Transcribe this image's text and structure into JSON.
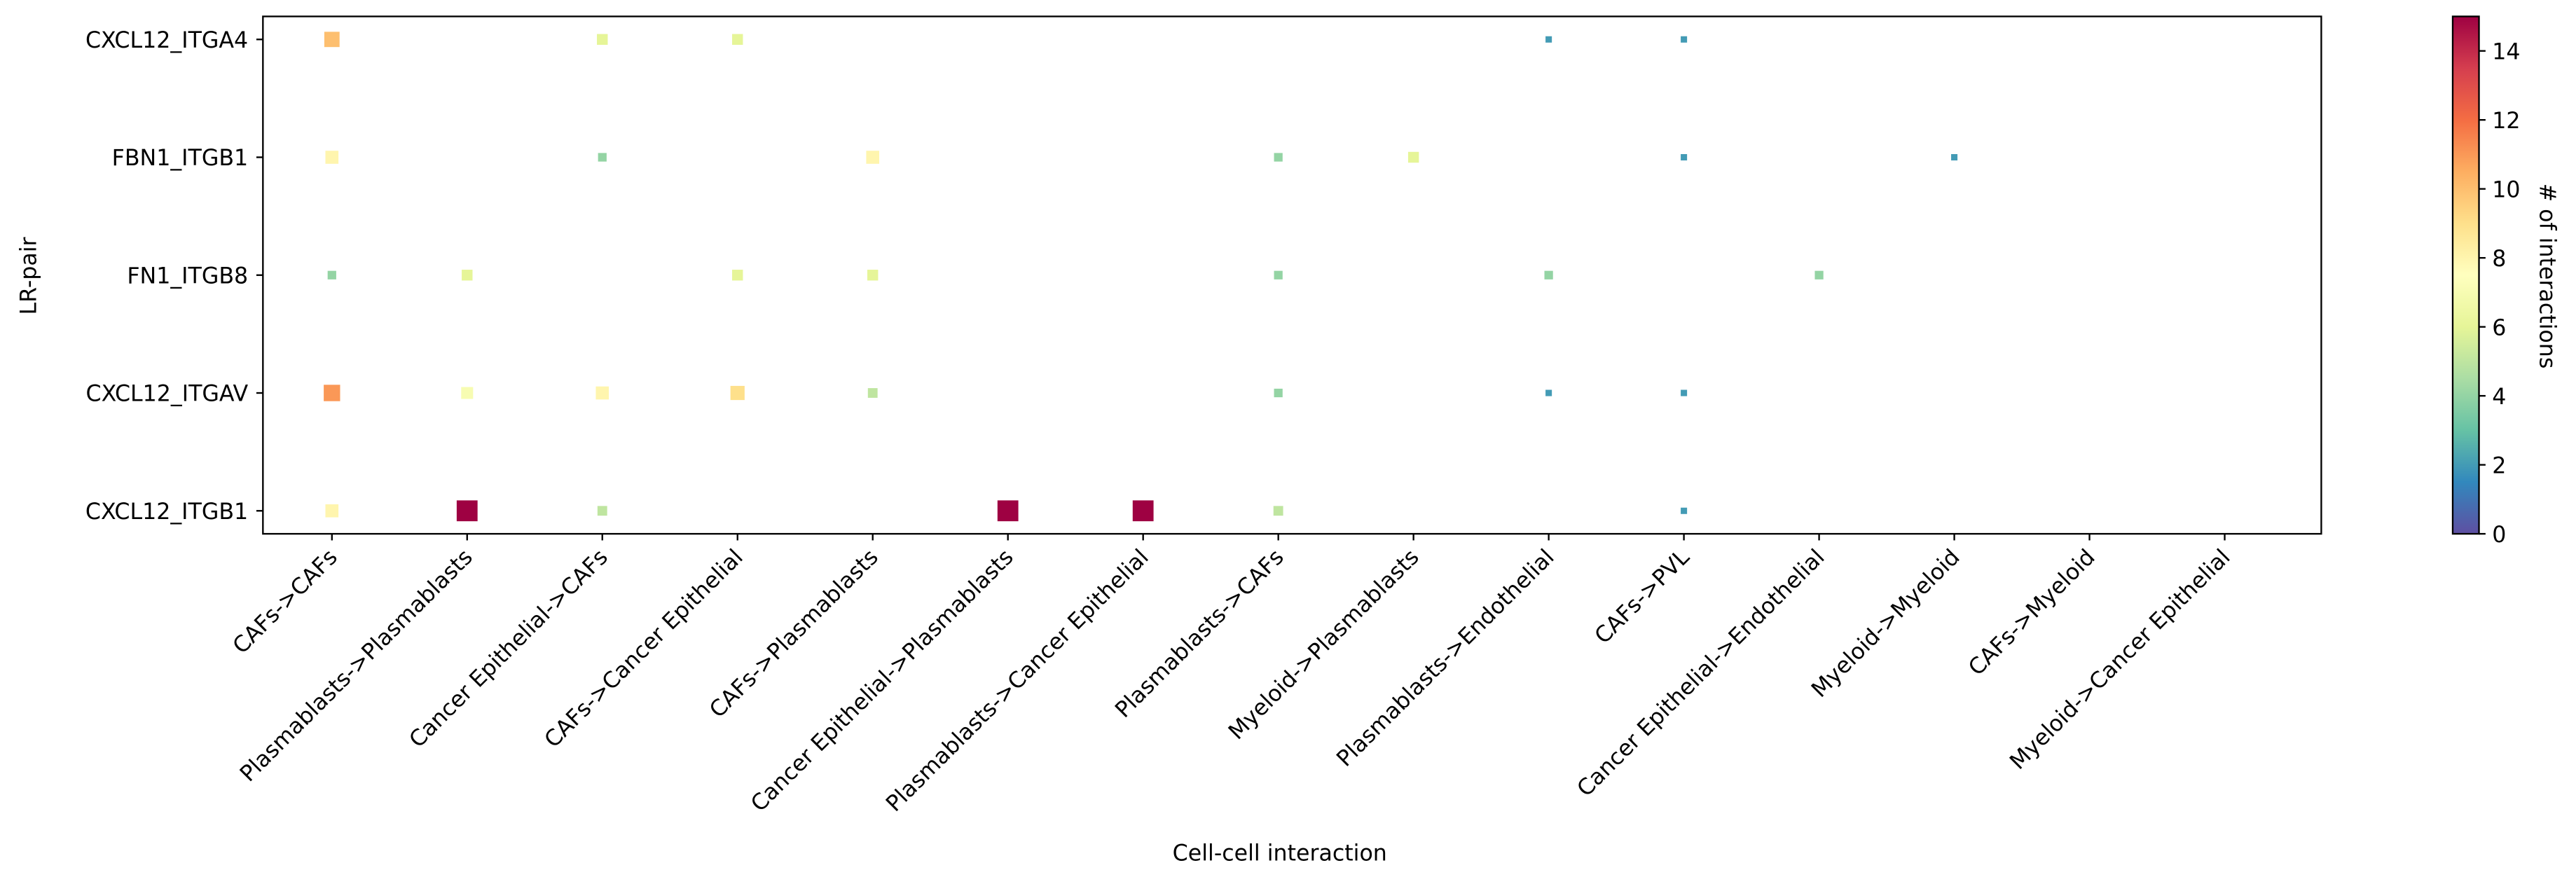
{
  "chart_data": {
    "type": "dotmatrix",
    "x_label": "Cell-cell interaction",
    "y_label": "LR-pair",
    "x_categories": [
      "CAFs->CAFs",
      "Plasmablasts->Plasmablasts",
      "Cancer Epithelial->CAFs",
      "CAFs->Cancer Epithelial",
      "CAFs->Plasmablasts",
      "Cancer Epithelial->Plasmablasts",
      "Plasmablasts->Cancer Epithelial",
      "Plasmablasts->CAFs",
      "Myeloid->Plasmablasts",
      "Plasmablasts->Endothelial",
      "CAFs->PVL",
      "Cancer Epithelial->Endothelial",
      "Myeloid->Myeloid",
      "CAFs->Myeloid",
      "Myeloid->Cancer Epithelial"
    ],
    "y_categories": [
      "CXCL12_ITGA4",
      "FBN1_ITGB1",
      "FN1_ITGB8",
      "CXCL12_ITGAV",
      "CXCL12_ITGB1"
    ],
    "points": [
      {
        "x": 0,
        "y": 0,
        "value": 10
      },
      {
        "x": 2,
        "y": 0,
        "value": 6
      },
      {
        "x": 3,
        "y": 0,
        "value": 6
      },
      {
        "x": 9,
        "y": 0,
        "value": 2
      },
      {
        "x": 10,
        "y": 0,
        "value": 2
      },
      {
        "x": 0,
        "y": 1,
        "value": 8
      },
      {
        "x": 2,
        "y": 1,
        "value": 4
      },
      {
        "x": 4,
        "y": 1,
        "value": 8
      },
      {
        "x": 7,
        "y": 1,
        "value": 4
      },
      {
        "x": 8,
        "y": 1,
        "value": 6
      },
      {
        "x": 10,
        "y": 1,
        "value": 2
      },
      {
        "x": 12,
        "y": 1,
        "value": 2
      },
      {
        "x": 0,
        "y": 2,
        "value": 4
      },
      {
        "x": 1,
        "y": 2,
        "value": 6
      },
      {
        "x": 3,
        "y": 2,
        "value": 6
      },
      {
        "x": 4,
        "y": 2,
        "value": 6
      },
      {
        "x": 7,
        "y": 2,
        "value": 4
      },
      {
        "x": 9,
        "y": 2,
        "value": 4
      },
      {
        "x": 11,
        "y": 2,
        "value": 4
      },
      {
        "x": 0,
        "y": 3,
        "value": 11
      },
      {
        "x": 1,
        "y": 3,
        "value": 7
      },
      {
        "x": 2,
        "y": 3,
        "value": 8
      },
      {
        "x": 3,
        "y": 3,
        "value": 9
      },
      {
        "x": 4,
        "y": 3,
        "value": 5
      },
      {
        "x": 7,
        "y": 3,
        "value": 4
      },
      {
        "x": 9,
        "y": 3,
        "value": 2
      },
      {
        "x": 10,
        "y": 3,
        "value": 2
      },
      {
        "x": 0,
        "y": 4,
        "value": 8
      },
      {
        "x": 1,
        "y": 4,
        "value": 15
      },
      {
        "x": 2,
        "y": 4,
        "value": 5
      },
      {
        "x": 5,
        "y": 4,
        "value": 15
      },
      {
        "x": 6,
        "y": 4,
        "value": 15
      },
      {
        "x": 7,
        "y": 4,
        "value": 5
      },
      {
        "x": 10,
        "y": 4,
        "value": 2
      }
    ],
    "colorbar_label": "# of interactions",
    "clim": [
      0,
      15
    ],
    "cticks": [
      0,
      2,
      4,
      6,
      8,
      10,
      12,
      14
    ],
    "colormap": [
      "#5e4fa2",
      "#3288bd",
      "#66c2a5",
      "#abdda4",
      "#e6f598",
      "#ffffbf",
      "#fee08b",
      "#fdae61",
      "#f46d43",
      "#d53e4f",
      "#9e0142"
    ]
  }
}
